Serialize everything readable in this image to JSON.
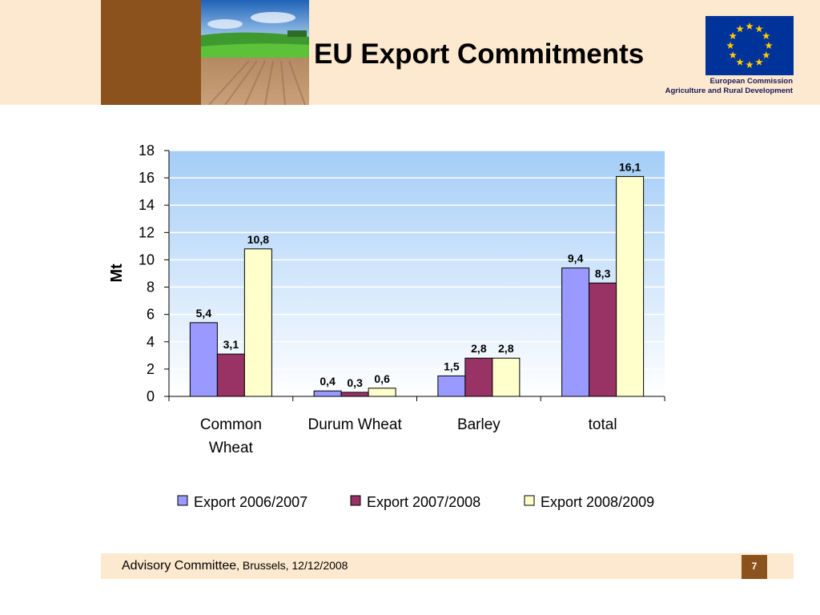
{
  "header": {
    "title": "EU Export Commitments",
    "org_name": "European Commission",
    "org_department": "Agriculture and Rural Development"
  },
  "footer": {
    "committee": "Advisory Committee",
    "location_date": ", Brussels, 12/12/2008",
    "page": "7"
  },
  "colors": {
    "header_band": "#fde9cf",
    "brown": "#8b521d",
    "series_1": "#9999ff",
    "series_2": "#993366",
    "series_3": "#ffffcc",
    "eu_blue": "#003399",
    "eu_gold": "#ffcc00"
  },
  "chart_data": {
    "type": "bar",
    "categories": [
      "Common Wheat",
      "Durum Wheat",
      "Barley",
      "total"
    ],
    "category_lines": [
      [
        "Common",
        "Wheat"
      ],
      [
        "Durum Wheat"
      ],
      [
        "Barley"
      ],
      [
        "total"
      ]
    ],
    "series": [
      {
        "name": "Export 2006/2007",
        "values": [
          5.4,
          0.4,
          1.5,
          9.4
        ],
        "labels": [
          "5,4",
          "0,4",
          "1,5",
          "9,4"
        ]
      },
      {
        "name": "Export 2007/2008",
        "values": [
          3.1,
          0.3,
          2.8,
          8.3
        ],
        "labels": [
          "3,1",
          "0,3",
          "2,8",
          "8,3"
        ]
      },
      {
        "name": "Export 2008/2009",
        "values": [
          10.8,
          0.6,
          2.8,
          16.1
        ],
        "labels": [
          "10,8",
          "0,6",
          "2,8",
          "16,1"
        ]
      }
    ],
    "ylabel": "Mt",
    "xlabel": "",
    "ylim": [
      0,
      18
    ],
    "yticks": [
      0,
      2,
      4,
      6,
      8,
      10,
      12,
      14,
      16,
      18
    ],
    "grid": true,
    "legend": "bottom"
  }
}
